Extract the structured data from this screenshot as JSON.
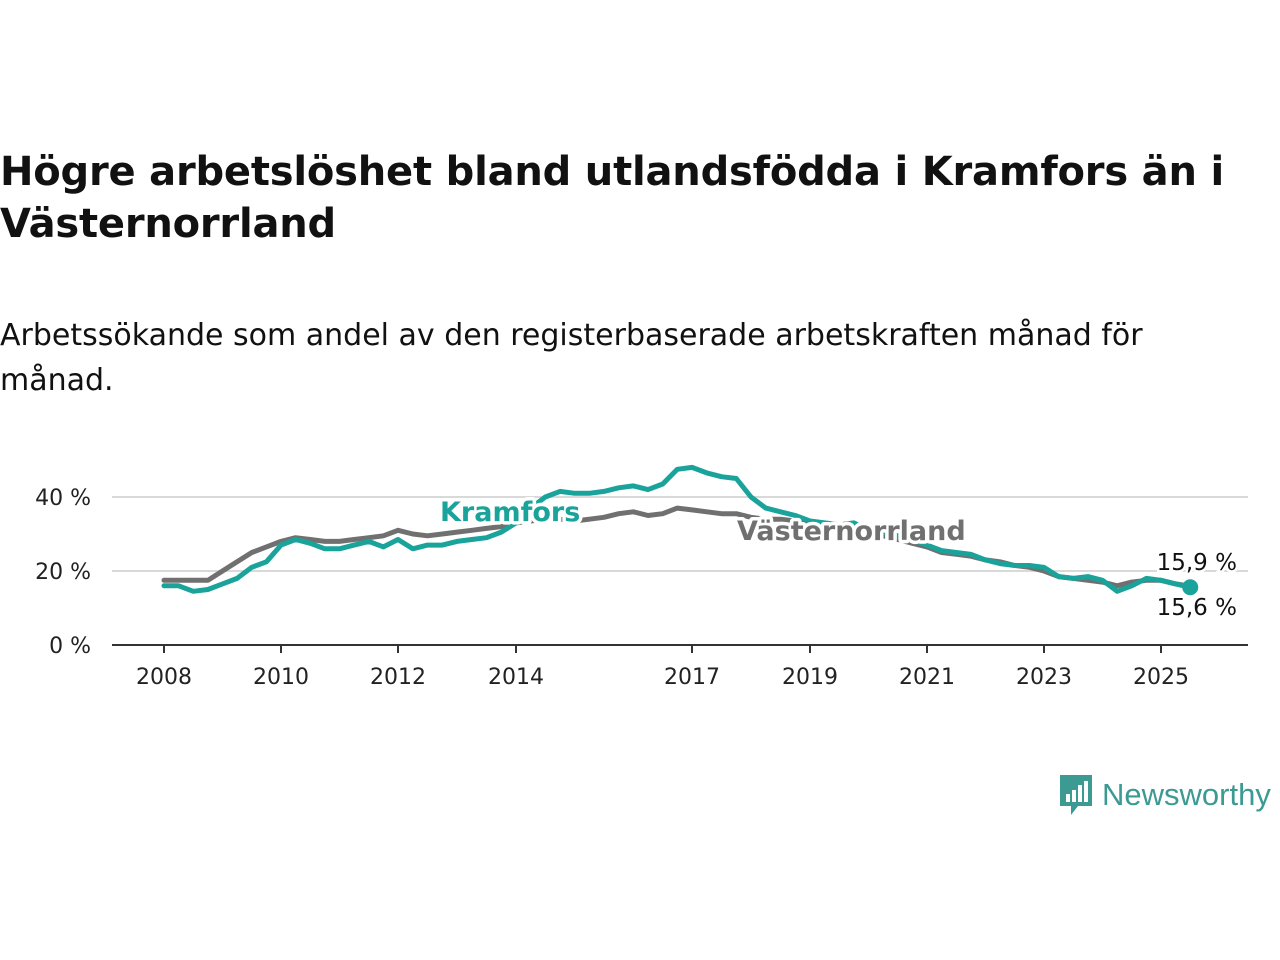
{
  "title": "Högre arbetslöshet bland utlandsfödda i Kramfors än i Västernorrland",
  "subtitle": "Arbetssökande som andel av den registerbaserade arbetskraften månad för månad.",
  "brand": {
    "name": "Newsworthy",
    "icon": "newsworthy-bar-chart-icon",
    "color": "#3b9a92"
  },
  "colors": {
    "kramfors": "#1aa39a",
    "vasternorrland": "#707070",
    "grid": "#d9d9d9",
    "axis": "#333333"
  },
  "chart_data": {
    "type": "line",
    "title": "Högre arbetslöshet bland utlandsfödda i Kramfors än i Västernorrland",
    "subtitle": "Arbetssökande som andel av den registerbaserade arbetskraften månad för månad.",
    "xlabel": "",
    "ylabel": "",
    "x_ticks": [
      "2008",
      "2010",
      "2012",
      "2014",
      "2017",
      "2019",
      "2021",
      "2023",
      "2025"
    ],
    "y_ticks": [
      "0 %",
      "20 %",
      "40 %"
    ],
    "ylim": [
      0,
      50
    ],
    "grid": "horizontal",
    "legend": "inline labels",
    "series": [
      {
        "name": "Kramfors",
        "color": "#1aa39a",
        "end_label": "15,6 %",
        "points": [
          [
            "2008-01",
            16.0
          ],
          [
            "2008-04",
            16.0
          ],
          [
            "2008-07",
            14.5
          ],
          [
            "2008-10",
            15.0
          ],
          [
            "2009-01",
            16.5
          ],
          [
            "2009-04",
            18.0
          ],
          [
            "2009-07",
            21.0
          ],
          [
            "2009-10",
            22.5
          ],
          [
            "2010-01",
            27.0
          ],
          [
            "2010-04",
            28.5
          ],
          [
            "2010-07",
            27.5
          ],
          [
            "2010-10",
            26.0
          ],
          [
            "2011-01",
            26.0
          ],
          [
            "2011-04",
            27.0
          ],
          [
            "2011-07",
            28.0
          ],
          [
            "2011-10",
            26.5
          ],
          [
            "2012-01",
            28.5
          ],
          [
            "2012-04",
            26.0
          ],
          [
            "2012-07",
            27.0
          ],
          [
            "2012-10",
            27.0
          ],
          [
            "2013-01",
            28.0
          ],
          [
            "2013-04",
            28.5
          ],
          [
            "2013-07",
            29.0
          ],
          [
            "2013-10",
            30.5
          ],
          [
            "2014-01",
            33.0
          ],
          [
            "2014-04",
            37.0
          ],
          [
            "2014-07",
            40.0
          ],
          [
            "2014-10",
            41.5
          ],
          [
            "2015-01",
            41.0
          ],
          [
            "2015-04",
            41.0
          ],
          [
            "2015-07",
            41.5
          ],
          [
            "2015-10",
            42.5
          ],
          [
            "2016-01",
            43.0
          ],
          [
            "2016-04",
            42.0
          ],
          [
            "2016-07",
            43.5
          ],
          [
            "2016-10",
            47.5
          ],
          [
            "2017-01",
            48.0
          ],
          [
            "2017-04",
            46.5
          ],
          [
            "2017-07",
            45.5
          ],
          [
            "2017-10",
            45.0
          ],
          [
            "2018-01",
            40.0
          ],
          [
            "2018-04",
            37.0
          ],
          [
            "2018-07",
            36.0
          ],
          [
            "2018-10",
            35.0
          ],
          [
            "2019-01",
            33.5
          ],
          [
            "2019-04",
            33.0
          ],
          [
            "2019-07",
            32.5
          ],
          [
            "2019-10",
            33.0
          ],
          [
            "2020-01",
            31.0
          ],
          [
            "2020-04",
            30.5
          ],
          [
            "2020-07",
            29.5
          ],
          [
            "2020-10",
            28.5
          ],
          [
            "2021-01",
            27.0
          ],
          [
            "2021-04",
            25.5
          ],
          [
            "2021-07",
            25.0
          ],
          [
            "2021-10",
            24.5
          ],
          [
            "2022-01",
            23.0
          ],
          [
            "2022-04",
            22.0
          ],
          [
            "2022-07",
            21.5
          ],
          [
            "2022-10",
            21.5
          ],
          [
            "2023-01",
            21.0
          ],
          [
            "2023-04",
            18.5
          ],
          [
            "2023-07",
            18.0
          ],
          [
            "2023-10",
            18.5
          ],
          [
            "2024-01",
            17.5
          ],
          [
            "2024-04",
            14.5
          ],
          [
            "2024-07",
            16.0
          ],
          [
            "2024-10",
            18.0
          ],
          [
            "2025-01",
            17.5
          ],
          [
            "2025-04",
            16.5
          ],
          [
            "2025-07",
            15.6
          ]
        ]
      },
      {
        "name": "Västernorrland",
        "color": "#707070",
        "end_label": "15,9 %",
        "points": [
          [
            "2008-01",
            17.5
          ],
          [
            "2008-04",
            17.5
          ],
          [
            "2008-07",
            17.5
          ],
          [
            "2008-10",
            17.5
          ],
          [
            "2009-01",
            20.0
          ],
          [
            "2009-04",
            22.5
          ],
          [
            "2009-07",
            25.0
          ],
          [
            "2009-10",
            26.5
          ],
          [
            "2010-01",
            28.0
          ],
          [
            "2010-04",
            29.0
          ],
          [
            "2010-07",
            28.5
          ],
          [
            "2010-10",
            28.0
          ],
          [
            "2011-01",
            28.0
          ],
          [
            "2011-04",
            28.5
          ],
          [
            "2011-07",
            29.0
          ],
          [
            "2011-10",
            29.5
          ],
          [
            "2012-01",
            31.0
          ],
          [
            "2012-04",
            30.0
          ],
          [
            "2012-07",
            29.5
          ],
          [
            "2012-10",
            30.0
          ],
          [
            "2013-01",
            30.5
          ],
          [
            "2013-04",
            31.0
          ],
          [
            "2013-07",
            31.5
          ],
          [
            "2013-10",
            32.0
          ],
          [
            "2014-01",
            33.0
          ],
          [
            "2014-04",
            33.5
          ],
          [
            "2014-07",
            34.0
          ],
          [
            "2014-10",
            34.0
          ],
          [
            "2015-01",
            33.5
          ],
          [
            "2015-04",
            34.0
          ],
          [
            "2015-07",
            34.5
          ],
          [
            "2015-10",
            35.5
          ],
          [
            "2016-01",
            36.0
          ],
          [
            "2016-04",
            35.0
          ],
          [
            "2016-07",
            35.5
          ],
          [
            "2016-10",
            37.0
          ],
          [
            "2017-01",
            36.5
          ],
          [
            "2017-04",
            36.0
          ],
          [
            "2017-07",
            35.5
          ],
          [
            "2017-10",
            35.5
          ],
          [
            "2018-01",
            34.5
          ],
          [
            "2018-04",
            34.0
          ],
          [
            "2018-07",
            34.0
          ],
          [
            "2018-10",
            33.5
          ],
          [
            "2019-01",
            33.0
          ],
          [
            "2019-04",
            32.5
          ],
          [
            "2019-07",
            32.0
          ],
          [
            "2019-10",
            31.0
          ],
          [
            "2020-01",
            30.0
          ],
          [
            "2020-04",
            29.5
          ],
          [
            "2020-07",
            28.5
          ],
          [
            "2020-10",
            27.5
          ],
          [
            "2021-01",
            26.5
          ],
          [
            "2021-04",
            25.0
          ],
          [
            "2021-07",
            24.5
          ],
          [
            "2021-10",
            24.0
          ],
          [
            "2022-01",
            23.0
          ],
          [
            "2022-04",
            22.5
          ],
          [
            "2022-07",
            21.5
          ],
          [
            "2022-10",
            21.0
          ],
          [
            "2023-01",
            20.0
          ],
          [
            "2023-04",
            18.5
          ],
          [
            "2023-07",
            18.0
          ],
          [
            "2023-10",
            17.5
          ],
          [
            "2024-01",
            17.0
          ],
          [
            "2024-04",
            16.0
          ],
          [
            "2024-07",
            17.0
          ],
          [
            "2024-10",
            17.5
          ],
          [
            "2025-01",
            17.5
          ],
          [
            "2025-04",
            16.5
          ],
          [
            "2025-07",
            15.9
          ]
        ]
      }
    ]
  }
}
